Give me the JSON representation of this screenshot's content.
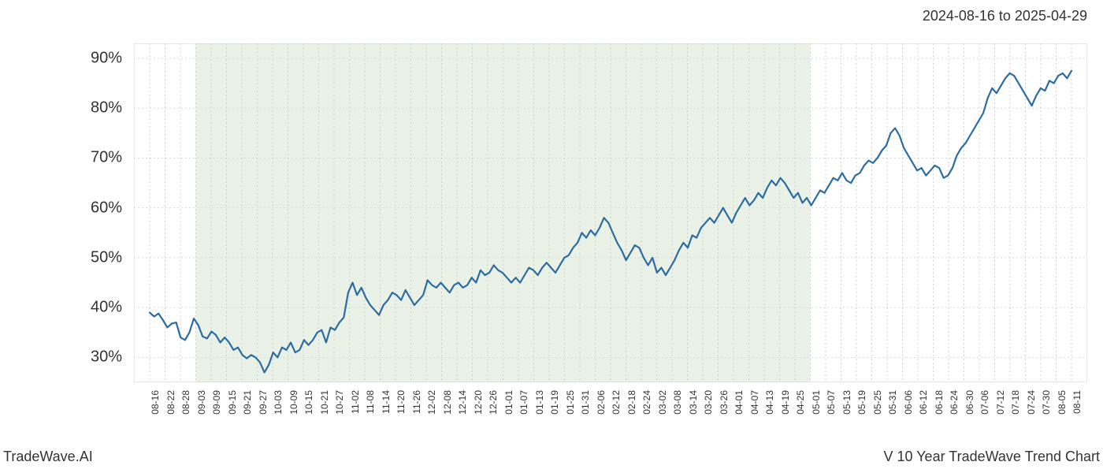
{
  "header": {
    "date_range": "2024-08-16 to 2025-04-29"
  },
  "footer": {
    "left": "TradeWave.AI",
    "right": "V 10 Year TradeWave Trend Chart"
  },
  "chart": {
    "type": "line",
    "background_color": "#ffffff",
    "highlight_region": {
      "enabled": true,
      "color": "#d9e8d4",
      "opacity": 0.55,
      "x_start_index": 3,
      "x_end_index": 43
    },
    "line": {
      "color": "#2d6ca2",
      "width": 2.2
    },
    "grid": {
      "vertical_color": "#bfbfbf",
      "vertical_dash": "2,3",
      "horizontal_color": "#d9d9d9",
      "horizontal_dash": "2,3"
    },
    "yaxis": {
      "min": 25,
      "max": 93,
      "ticks": [
        30,
        40,
        50,
        60,
        70,
        80,
        90
      ],
      "tick_suffix": "%",
      "tick_fontsize": 20,
      "tick_color": "#333333"
    },
    "xaxis": {
      "tick_fontsize": 12,
      "tick_color": "#333333",
      "tick_rotation": -90,
      "labels": [
        "08-16",
        "08-22",
        "08-28",
        "09-03",
        "09-09",
        "09-15",
        "09-21",
        "09-27",
        "10-03",
        "10-09",
        "10-15",
        "10-21",
        "10-27",
        "11-02",
        "11-08",
        "11-14",
        "11-20",
        "11-26",
        "12-02",
        "12-08",
        "12-14",
        "12-20",
        "12-26",
        "01-01",
        "01-07",
        "01-13",
        "01-19",
        "01-25",
        "01-31",
        "02-06",
        "02-12",
        "02-18",
        "02-24",
        "03-02",
        "03-08",
        "03-14",
        "03-20",
        "03-26",
        "04-01",
        "04-07",
        "04-13",
        "04-19",
        "04-25",
        "05-01",
        "05-07",
        "05-13",
        "05-19",
        "05-25",
        "05-31",
        "06-06",
        "06-12",
        "06-18",
        "06-24",
        "06-30",
        "07-06",
        "07-12",
        "07-18",
        "07-24",
        "07-30",
        "08-05",
        "08-11"
      ]
    },
    "series": {
      "name": "trend",
      "values": [
        39.0,
        38.2,
        38.8,
        37.5,
        36.0,
        36.8,
        37.0,
        34.0,
        33.5,
        35.0,
        37.8,
        36.5,
        34.2,
        33.8,
        35.2,
        34.5,
        33.0,
        34.0,
        33.0,
        31.5,
        32.0,
        30.5,
        29.8,
        30.5,
        30.0,
        29.0,
        27.0,
        28.5,
        31.0,
        30.0,
        32.0,
        31.5,
        33.0,
        31.0,
        31.5,
        33.5,
        32.5,
        33.5,
        35.0,
        35.5,
        33.0,
        36.0,
        35.5,
        37.0,
        38.0,
        43.0,
        45.0,
        42.5,
        44.0,
        42.0,
        40.5,
        39.5,
        38.5,
        40.5,
        41.5,
        43.0,
        42.5,
        41.5,
        43.5,
        42.0,
        40.5,
        41.5,
        42.5,
        45.5,
        44.5,
        44.0,
        45.0,
        44.0,
        43.0,
        44.5,
        45.0,
        44.0,
        44.5,
        46.0,
        45.0,
        47.5,
        46.5,
        47.0,
        48.5,
        47.5,
        47.0,
        46.0,
        45.0,
        46.0,
        45.0,
        46.5,
        48.0,
        47.5,
        46.5,
        48.0,
        49.0,
        48.0,
        47.0,
        48.5,
        50.0,
        50.5,
        52.0,
        53.0,
        55.0,
        54.0,
        55.5,
        54.5,
        56.0,
        58.0,
        57.0,
        55.0,
        53.0,
        51.5,
        49.5,
        51.0,
        52.5,
        52.0,
        50.0,
        48.5,
        50.0,
        47.0,
        48.0,
        46.5,
        48.0,
        49.5,
        51.5,
        53.0,
        52.0,
        54.5,
        54.0,
        56.0,
        57.0,
        58.0,
        57.0,
        58.5,
        60.0,
        58.5,
        57.0,
        59.0,
        60.5,
        62.0,
        60.5,
        61.5,
        63.0,
        62.0,
        64.0,
        65.5,
        64.5,
        66.0,
        65.0,
        63.5,
        62.0,
        63.0,
        61.0,
        62.0,
        60.5,
        62.0,
        63.5,
        63.0,
        64.5,
        66.0,
        65.5,
        67.0,
        65.5,
        65.0,
        66.5,
        67.0,
        68.5,
        69.5,
        69.0,
        70.0,
        71.5,
        72.5,
        75.0,
        76.0,
        74.5,
        72.0,
        70.5,
        69.0,
        67.5,
        68.0,
        66.5,
        67.5,
        68.5,
        68.0,
        66.0,
        66.5,
        68.0,
        70.5,
        72.0,
        73.0,
        74.5,
        76.0,
        77.5,
        79.0,
        82.0,
        84.0,
        83.0,
        84.5,
        86.0,
        87.0,
        86.5,
        85.0,
        83.5,
        82.0,
        80.5,
        82.5,
        84.0,
        83.5,
        85.5,
        85.0,
        86.5,
        87.0,
        86.0,
        87.5
      ]
    }
  }
}
